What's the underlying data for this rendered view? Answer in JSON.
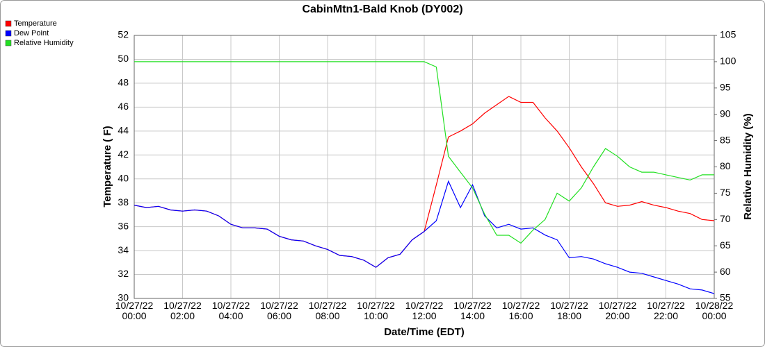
{
  "chart_data": {
    "type": "line",
    "title": "CabinMtn1-Bald Knob (DY002)",
    "xlabel": "Date/Time (EDT)",
    "ylabel": "Temperature ( F)",
    "y2label": "Relative Humidity (%)",
    "x": [
      "10/27/22 00:00",
      "10/27/22 00:30",
      "10/27/22 01:00",
      "10/27/22 01:30",
      "10/27/22 02:00",
      "10/27/22 02:30",
      "10/27/22 03:00",
      "10/27/22 03:30",
      "10/27/22 04:00",
      "10/27/22 04:30",
      "10/27/22 05:00",
      "10/27/22 05:30",
      "10/27/22 06:00",
      "10/27/22 06:30",
      "10/27/22 07:00",
      "10/27/22 07:30",
      "10/27/22 08:00",
      "10/27/22 08:30",
      "10/27/22 09:00",
      "10/27/22 09:30",
      "10/27/22 10:00",
      "10/27/22 10:30",
      "10/27/22 11:00",
      "10/27/22 11:30",
      "10/27/22 12:00",
      "10/27/22 12:30",
      "10/27/22 13:00",
      "10/27/22 13:30",
      "10/27/22 14:00",
      "10/27/22 14:30",
      "10/27/22 15:00",
      "10/27/22 15:30",
      "10/27/22 16:00",
      "10/27/22 16:30",
      "10/27/22 17:00",
      "10/27/22 17:30",
      "10/27/22 18:00",
      "10/27/22 18:30",
      "10/27/22 19:00",
      "10/27/22 19:30",
      "10/27/22 20:00",
      "10/27/22 20:30",
      "10/27/22 21:00",
      "10/27/22 21:30",
      "10/27/22 22:00",
      "10/27/22 22:30",
      "10/27/22 23:00",
      "10/27/22 23:30",
      "10/28/22 00:00"
    ],
    "series": [
      {
        "name": "Temperature",
        "color": "#ff0000",
        "axis": "y",
        "values": [
          37.8,
          37.6,
          37.7,
          37.4,
          37.3,
          37.4,
          37.3,
          36.9,
          36.2,
          35.9,
          35.9,
          35.8,
          35.2,
          34.9,
          34.8,
          34.4,
          34.1,
          33.6,
          33.5,
          33.2,
          32.6,
          33.4,
          33.7,
          34.9,
          35.6,
          39.5,
          43.5,
          44.0,
          44.6,
          45.5,
          46.2,
          46.9,
          46.4,
          46.4,
          45.1,
          44.0,
          42.6,
          41.0,
          39.6,
          38.0,
          37.7,
          37.8,
          38.1,
          37.8,
          37.6,
          37.3,
          37.1,
          36.6,
          36.5
        ]
      },
      {
        "name": "Dew Point",
        "color": "#0000ff",
        "axis": "y",
        "values": [
          37.8,
          37.6,
          37.7,
          37.4,
          37.3,
          37.4,
          37.3,
          36.9,
          36.2,
          35.9,
          35.9,
          35.8,
          35.2,
          34.9,
          34.8,
          34.4,
          34.1,
          33.6,
          33.5,
          33.2,
          32.6,
          33.4,
          33.7,
          34.9,
          35.6,
          36.5,
          39.8,
          37.6,
          39.5,
          36.9,
          35.9,
          36.2,
          35.8,
          35.9,
          35.3,
          34.9,
          33.4,
          33.5,
          33.3,
          32.9,
          32.6,
          32.2,
          32.1,
          31.8,
          31.5,
          31.2,
          30.8,
          30.7,
          30.4
        ]
      },
      {
        "name": "Relative Humidity",
        "color": "#22e022",
        "axis": "y2",
        "values": [
          100,
          100,
          100,
          100,
          100,
          100,
          100,
          100,
          100,
          100,
          100,
          100,
          100,
          100,
          100,
          100,
          100,
          100,
          100,
          100,
          100,
          100,
          100,
          100,
          100,
          99,
          82,
          79,
          76,
          71,
          67,
          67,
          65.5,
          68,
          70,
          75,
          73.5,
          76,
          80,
          83.5,
          82,
          80,
          79,
          79,
          78.5,
          78,
          77.5,
          78.5,
          78.5
        ]
      }
    ],
    "xlim": [
      "10/27/22 00:00",
      "10/28/22 00:00"
    ],
    "xticks": [
      {
        "value": "10/27/22 00:00",
        "label": "10/27/22\n00:00"
      },
      {
        "value": "10/27/22 02:00",
        "label": "10/27/22\n02:00"
      },
      {
        "value": "10/27/22 04:00",
        "label": "10/27/22\n04:00"
      },
      {
        "value": "10/27/22 06:00",
        "label": "10/27/22\n06:00"
      },
      {
        "value": "10/27/22 08:00",
        "label": "10/27/22\n08:00"
      },
      {
        "value": "10/27/22 10:00",
        "label": "10/27/22\n10:00"
      },
      {
        "value": "10/27/22 12:00",
        "label": "10/27/22\n12:00"
      },
      {
        "value": "10/27/22 14:00",
        "label": "10/27/22\n14:00"
      },
      {
        "value": "10/27/22 16:00",
        "label": "10/27/22\n16:00"
      },
      {
        "value": "10/27/22 18:00",
        "label": "10/27/22\n18:00"
      },
      {
        "value": "10/27/22 20:00",
        "label": "10/27/22\n20:00"
      },
      {
        "value": "10/27/22 22:00",
        "label": "10/27/22\n22:00"
      },
      {
        "value": "10/28/22 00:00",
        "label": "10/28/22\n00:00"
      }
    ],
    "ylim": [
      30,
      52
    ],
    "yticks": [
      30,
      32,
      34,
      36,
      38,
      40,
      42,
      44,
      46,
      48,
      50,
      52
    ],
    "y2lim": [
      55,
      105
    ],
    "y2ticks": [
      55,
      60,
      65,
      70,
      75,
      80,
      85,
      90,
      95,
      100,
      105
    ],
    "grid": true,
    "legend": "top-left"
  }
}
